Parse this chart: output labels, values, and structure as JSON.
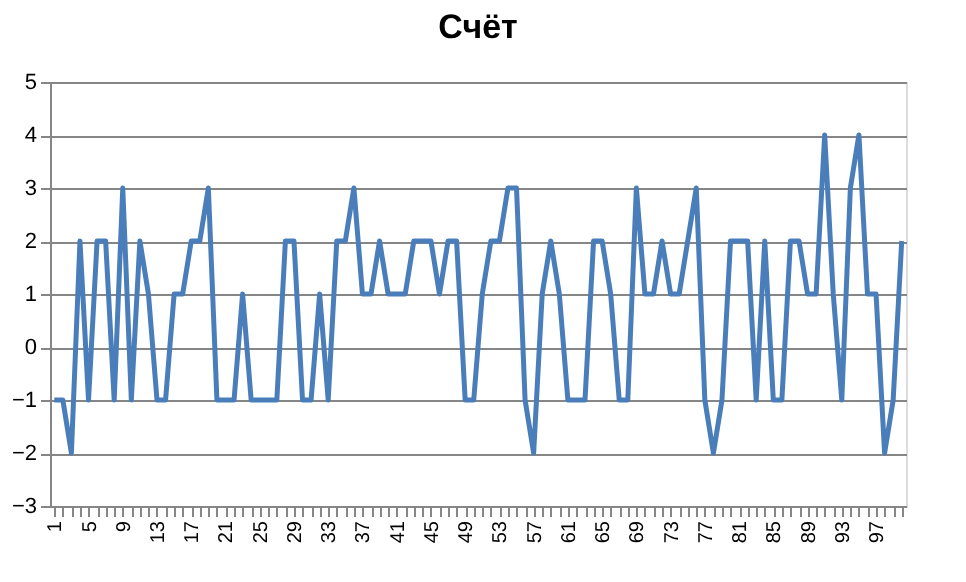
{
  "chart_data": {
    "type": "line",
    "title": "Счёт",
    "categories": [
      "1",
      null,
      null,
      null,
      "5",
      null,
      null,
      null,
      "9",
      null,
      null,
      null,
      "13",
      null,
      null,
      null,
      "17",
      null,
      null,
      null,
      "21",
      null,
      null,
      null,
      "25",
      null,
      null,
      null,
      "29",
      null,
      null,
      null,
      "33",
      null,
      null,
      null,
      "37",
      null,
      null,
      null,
      "41",
      null,
      null,
      null,
      "45",
      null,
      null,
      null,
      "49",
      null,
      null,
      null,
      "53",
      null,
      null,
      null,
      "57",
      null,
      null,
      null,
      "61",
      null,
      null,
      null,
      "65",
      null,
      null,
      null,
      "69",
      null,
      null,
      null,
      "73",
      null,
      null,
      null,
      "77",
      null,
      null,
      null,
      "81",
      null,
      null,
      null,
      "85",
      null,
      null,
      null,
      "89",
      null,
      null,
      null,
      "93",
      null,
      null,
      null,
      "97",
      null,
      null,
      null
    ],
    "series": [
      {
        "color": "#4a7ebb",
        "values": [
          -1,
          -1,
          -2,
          2,
          -1,
          2,
          2,
          -1,
          3,
          -1,
          2,
          1,
          -1,
          -1,
          1,
          1,
          2,
          2,
          3,
          -1,
          -1,
          -1,
          1,
          -1,
          -1,
          -1,
          -1,
          2,
          2,
          -1,
          -1,
          1,
          -1,
          2,
          2,
          3,
          1,
          1,
          2,
          1,
          1,
          1,
          2,
          2,
          2,
          1,
          2,
          2,
          -1,
          -1,
          1,
          2,
          2,
          3,
          3,
          -1,
          -2,
          1,
          2,
          1,
          -1,
          -1,
          -1,
          2,
          2,
          1,
          -1,
          -1,
          3,
          1,
          1,
          2,
          1,
          1,
          2,
          3,
          -1,
          -2,
          -1,
          2,
          2,
          2,
          -1,
          2,
          -1,
          -1,
          2,
          2,
          1,
          1,
          4,
          1,
          -1,
          3,
          4,
          1,
          1,
          -2,
          -1,
          2
        ]
      }
    ],
    "ylim": [
      -3,
      5
    ],
    "yticks": [
      -3,
      -2,
      -1,
      0,
      1,
      2,
      3,
      4,
      5
    ],
    "grid": "y",
    "marker": "none",
    "line_style": "solid"
  }
}
